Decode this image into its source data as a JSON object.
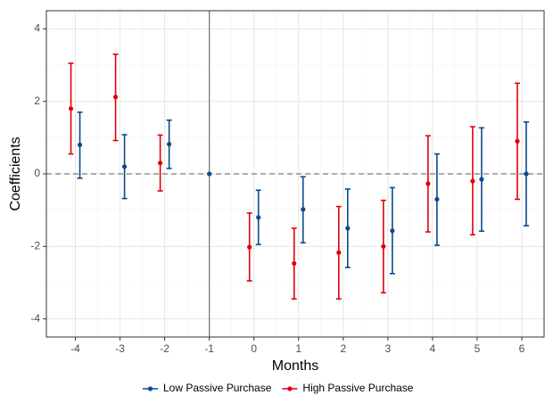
{
  "chart_data": {
    "type": "errorbar",
    "x_label": "Months",
    "y_label": "Coefficients",
    "x": [
      -4,
      -3,
      -2,
      -1,
      0,
      1,
      2,
      3,
      4,
      5,
      6
    ],
    "xlim": [
      -4.65,
      6.5
    ],
    "xticks": [
      -4,
      -3,
      -2,
      -1,
      0,
      1,
      2,
      3,
      4,
      5,
      6
    ],
    "ylim": [
      -4.5,
      4.5
    ],
    "yticks": [
      -4,
      -2,
      0,
      2,
      4
    ],
    "grid": true,
    "vline": -1,
    "hline": 0,
    "dodge": 0.1,
    "legend": "bottom",
    "series": [
      {
        "name": "Low Passive Purchase",
        "color": "#0b4a8b",
        "values": [
          0.8,
          0.2,
          0.82,
          0,
          -1.2,
          -0.98,
          -1.5,
          -1.57,
          -0.7,
          -0.15,
          0.0
        ],
        "lower": [
          -0.12,
          -0.68,
          0.15,
          null,
          -1.95,
          -1.9,
          -2.58,
          -2.75,
          -1.97,
          -1.58,
          -1.43
        ],
        "upper": [
          1.7,
          1.08,
          1.48,
          null,
          -0.45,
          -0.08,
          -0.42,
          -0.38,
          0.55,
          1.27,
          1.43
        ]
      },
      {
        "name": "High Passive Purchase",
        "color": "#e0000b",
        "values": [
          1.8,
          2.12,
          0.3,
          null,
          -2.02,
          -2.47,
          -2.17,
          -2.0,
          -0.27,
          -0.2,
          0.9
        ],
        "lower": [
          0.55,
          0.92,
          -0.47,
          null,
          -2.95,
          -3.45,
          -3.45,
          -3.28,
          -1.6,
          -1.68,
          -0.7
        ],
        "upper": [
          3.05,
          3.3,
          1.07,
          null,
          -1.08,
          -1.5,
          -0.9,
          -0.73,
          1.05,
          1.3,
          2.5
        ]
      }
    ]
  }
}
